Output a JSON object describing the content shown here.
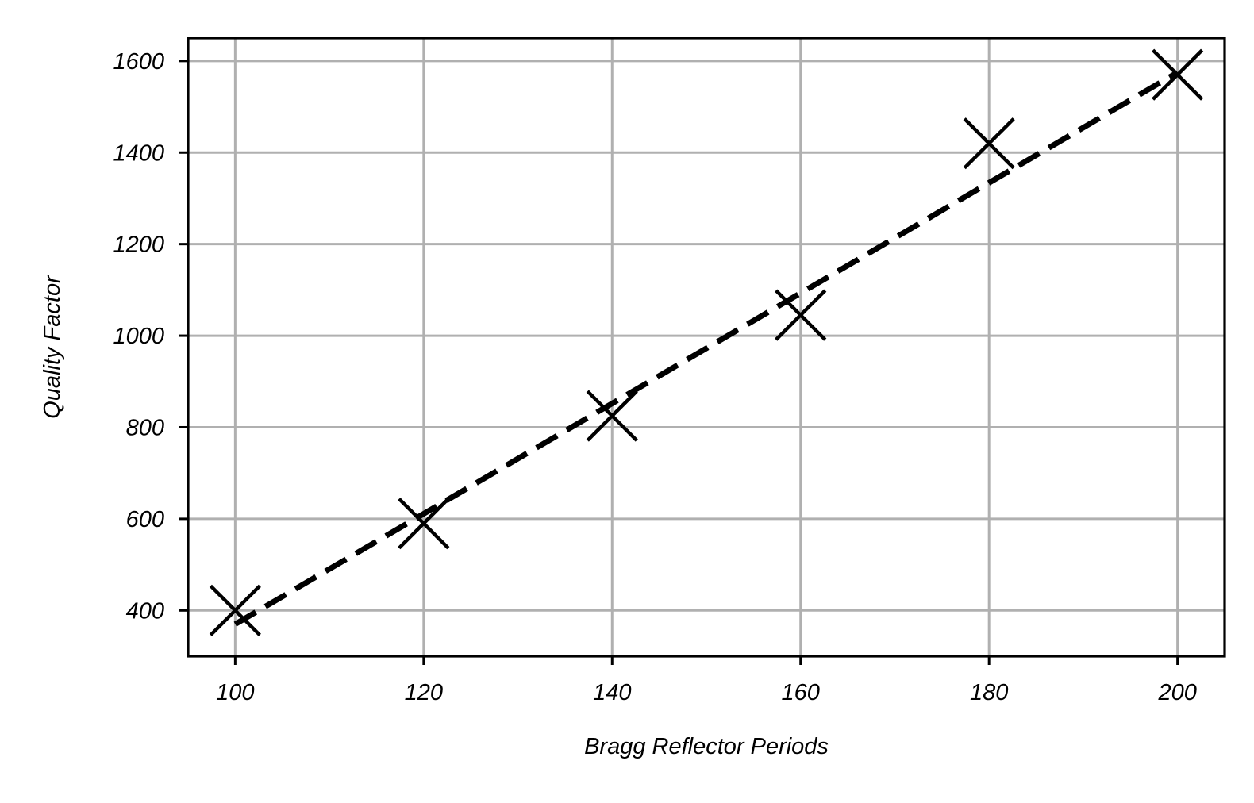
{
  "chart_data": {
    "type": "scatter",
    "title": "",
    "xlabel": "Bragg Reflector Periods",
    "ylabel": "Quality Factor",
    "xlim": [
      95,
      205
    ],
    "ylim": [
      300,
      1650
    ],
    "xticks": [
      100,
      120,
      140,
      160,
      180,
      200
    ],
    "yticks": [
      400,
      600,
      800,
      1000,
      1200,
      1400,
      1600
    ],
    "grid": true,
    "legend": "none",
    "series": [
      {
        "kind": "markers",
        "marker": "x",
        "color": "#000000",
        "x": [
          100,
          120,
          140,
          160,
          180,
          200
        ],
        "y": [
          400,
          590,
          825,
          1045,
          1420,
          1570
        ]
      },
      {
        "kind": "linear-fit",
        "style": "dashed",
        "color": "#000000",
        "x": [
          100,
          200
        ],
        "y": [
          370,
          1575
        ]
      }
    ],
    "colors": {
      "grid": "#b0b0b0",
      "axes": "#000000",
      "background": "#ffffff"
    }
  }
}
